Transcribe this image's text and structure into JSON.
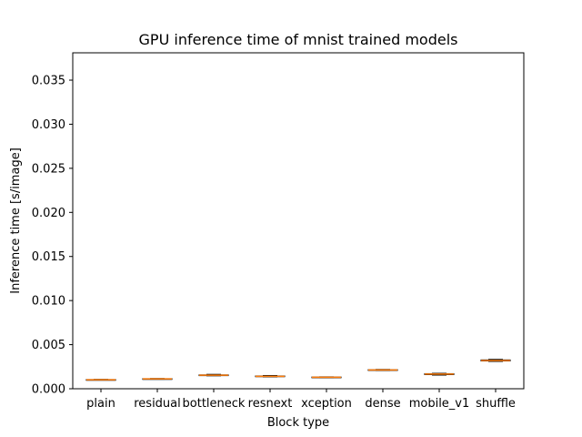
{
  "chart_data": {
    "type": "box",
    "title": "GPU inference time of mnist trained models",
    "xlabel": "Block type",
    "ylabel": "Inference time [s/image]",
    "ylim": [
      0,
      0.0381
    ],
    "yticks": [
      "0.000",
      "0.005",
      "0.010",
      "0.015",
      "0.020",
      "0.025",
      "0.030",
      "0.035"
    ],
    "categories": [
      "plain",
      "residual",
      "bottleneck",
      "resnext",
      "xception",
      "dense",
      "mobile_v1",
      "shuffle"
    ],
    "boxes": [
      {
        "category": "plain",
        "min": 0.00098,
        "q1": 0.001,
        "median": 0.00102,
        "q3": 0.00104,
        "max": 0.00106
      },
      {
        "category": "residual",
        "min": 0.00108,
        "q1": 0.0011,
        "median": 0.00112,
        "q3": 0.00114,
        "max": 0.00116
      },
      {
        "category": "bottleneck",
        "min": 0.00147,
        "q1": 0.0015,
        "median": 0.00153,
        "q3": 0.00157,
        "max": 0.00163
      },
      {
        "category": "resnext",
        "min": 0.00135,
        "q1": 0.00138,
        "median": 0.00141,
        "q3": 0.00145,
        "max": 0.0015
      },
      {
        "category": "xception",
        "min": 0.00127,
        "q1": 0.00129,
        "median": 0.00131,
        "q3": 0.00133,
        "max": 0.00135
      },
      {
        "category": "dense",
        "min": 0.00207,
        "q1": 0.0021,
        "median": 0.00213,
        "q3": 0.00216,
        "max": 0.00219
      },
      {
        "category": "mobile_v1",
        "min": 0.00155,
        "q1": 0.0016,
        "median": 0.00166,
        "q3": 0.00171,
        "max": 0.00175
      },
      {
        "category": "shuffle",
        "min": 0.0031,
        "q1": 0.00315,
        "median": 0.0032,
        "q3": 0.00327,
        "max": 0.00333
      }
    ],
    "grid": false,
    "legend": "none",
    "colors": {
      "box": "#000000",
      "median": "#ff7f0e"
    }
  }
}
